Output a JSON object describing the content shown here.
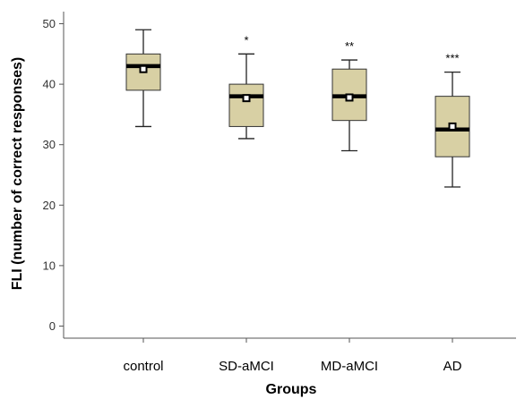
{
  "chart_data": {
    "type": "box",
    "xlabel": "Groups",
    "ylabel": "FLI (number of correct responses)",
    "ylim": [
      -2,
      52
    ],
    "yticks": [
      0,
      10,
      20,
      30,
      40,
      50
    ],
    "categories": [
      "control",
      "SD-aMCI",
      "MD-aMCI",
      "AD"
    ],
    "boxes": [
      {
        "category": "control",
        "whisker_low": 33,
        "q1": 39,
        "median": 43,
        "q3": 45,
        "whisker_high": 49,
        "mean": 42.5,
        "significance": ""
      },
      {
        "category": "SD-aMCI",
        "whisker_low": 31,
        "q1": 33,
        "median": 38,
        "q3": 40,
        "whisker_high": 45,
        "mean": 37.7,
        "significance": "*"
      },
      {
        "category": "MD-aMCI",
        "whisker_low": 29,
        "q1": 34,
        "median": 38,
        "q3": 42.5,
        "whisker_high": 44,
        "mean": 37.8,
        "significance": "**"
      },
      {
        "category": "AD",
        "whisker_low": 23,
        "q1": 28,
        "median": 32.5,
        "q3": 38,
        "whisker_high": 42,
        "mean": 33,
        "significance": "***"
      }
    ],
    "box_color": "#d8d0a4",
    "grid": false,
    "legend": "none"
  }
}
